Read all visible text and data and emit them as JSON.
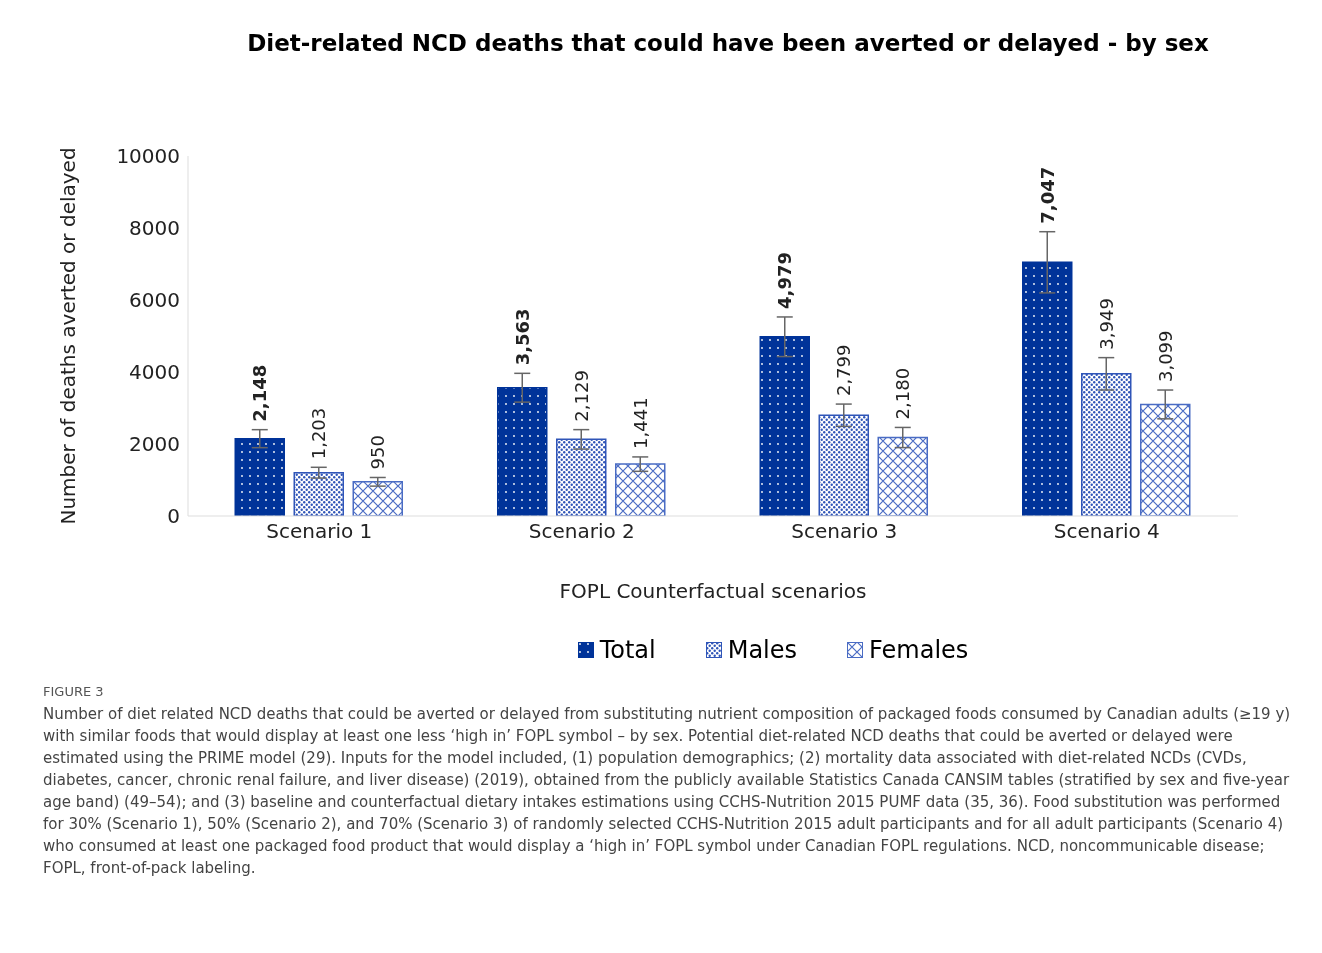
{
  "chart_data": {
    "type": "bar",
    "title": "Diet-related NCD deaths that could have been averted or delayed - by sex",
    "xlabel": "FOPL Counterfactual scenarios",
    "ylabel": "Number of deaths averted or delayed",
    "categories": [
      "Scenario 1",
      "Scenario 2",
      "Scenario 3",
      "Scenario 4"
    ],
    "series": [
      {
        "name": "Total",
        "color": "#003399",
        "values": [
          2148,
          3563,
          4979,
          7047
        ],
        "errors": [
          250,
          400,
          550,
          850
        ],
        "value_labels": [
          "2,148",
          "3,563",
          "4,979",
          "7,047"
        ]
      },
      {
        "name": "Males",
        "color": "#2f55b8",
        "values": [
          1203,
          2129,
          2799,
          3949
        ],
        "errors": [
          150,
          270,
          310,
          450
        ],
        "value_labels": [
          "1,203",
          "2,129",
          "2,799",
          "3,949"
        ]
      },
      {
        "name": "Females",
        "color": "#4a6cc4",
        "values": [
          950,
          1441,
          2180,
          3099
        ],
        "errors": [
          120,
          200,
          280,
          400
        ],
        "value_labels": [
          "950",
          "1,441",
          "2,180",
          "3,099"
        ]
      }
    ],
    "ylim": [
      0,
      10000
    ],
    "yticks": [
      0,
      2000,
      4000,
      6000,
      8000,
      10000
    ],
    "grid": false,
    "legend": "bottom",
    "annotations": [
      "FIGURE 3",
      "Number of diet related NCD deaths that could be averted or delayed from substituting nutrient composition of packaged foods consumed by Canadian adults (≥19 y) with similar foods that would display at least one less ‘high in’ FOPL symbol – by sex. Potential diet-related NCD deaths that could be averted or delayed were estimated using the PRIME model (29). Inputs for the model included, (1) population demographics; (2) mortality data associated with diet-related NCDs (CVDs, diabetes, cancer, chronic renal failure, and liver disease) (2019), obtained from the publicly available Statistics Canada CANSIM tables (stratified by sex and five-year age band) (49–54); and (3) baseline and counterfactual dietary intakes estimations using CCHS-Nutrition 2015 PUMF data (35, 36). Food substitution was performed for 30% (Scenario 1), 50% (Scenario 2), and 70% (Scenario 3) of randomly selected CCHS-Nutrition 2015 adult participants and for all adult participants (Scenario 4) who consumed at least one packaged food product that would display a ‘high in’ FOPL symbol under Canadian FOPL regulations. NCD, noncommunicable disease; FOPL, front-of-pack labeling."
    ]
  }
}
